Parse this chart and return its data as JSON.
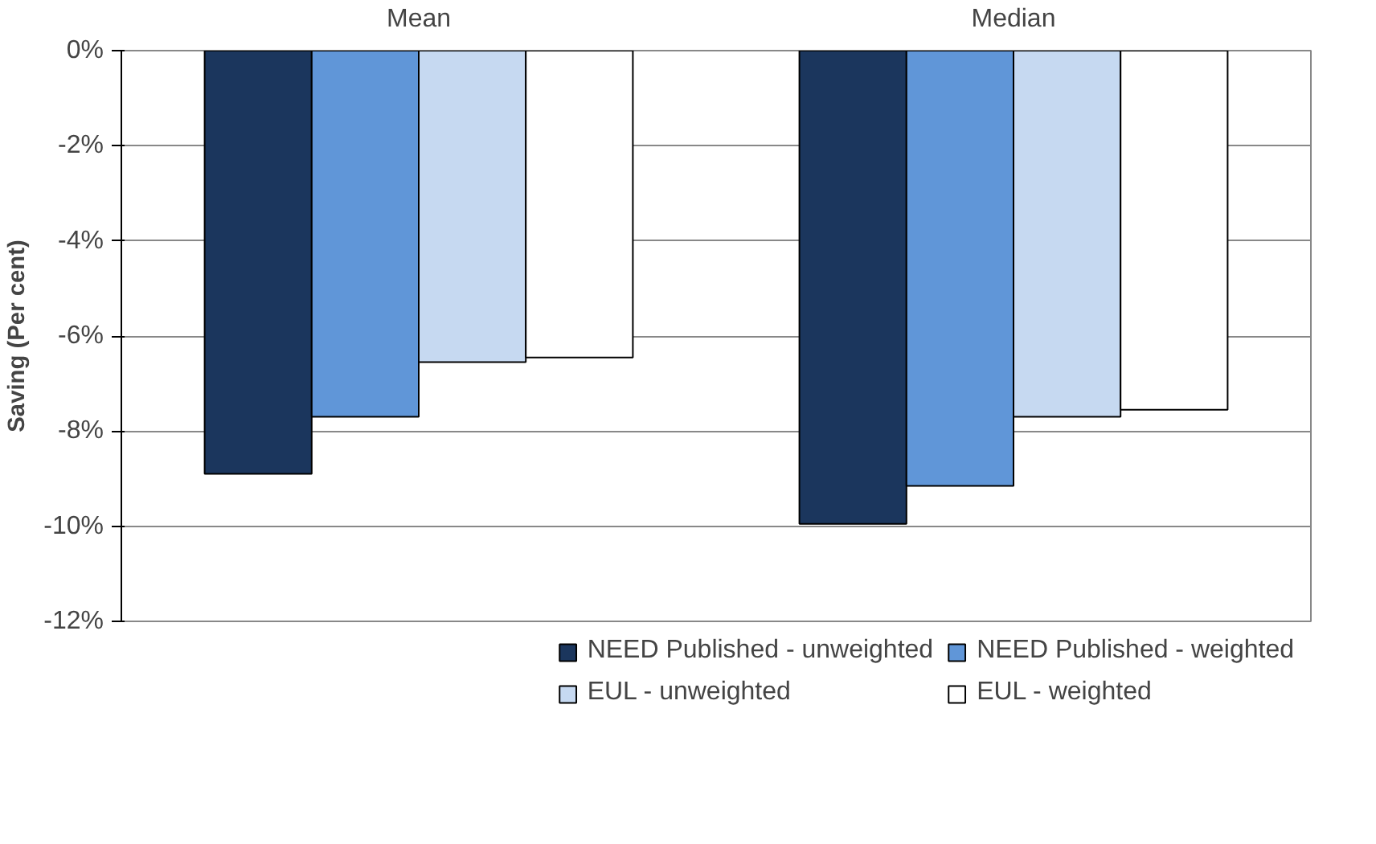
{
  "chart_data": {
    "type": "bar",
    "ylabel": "Saving (Per cent)",
    "categories": [
      "Mean",
      "Median"
    ],
    "series": [
      {
        "name": "NEED Published - unweighted",
        "color": "#1b365d",
        "values": [
          -8.9,
          -9.95
        ]
      },
      {
        "name": "NEED Published - weighted",
        "color": "#6096d8",
        "values": [
          -7.7,
          -9.15
        ]
      },
      {
        "name": "EUL - unweighted",
        "color": "#c6d9f1",
        "values": [
          -6.55,
          -7.7
        ]
      },
      {
        "name": "EUL - weighted",
        "color": "#ffffff",
        "values": [
          -6.45,
          -7.55
        ]
      }
    ],
    "ylim": [
      -12,
      0
    ],
    "yticks": [
      {
        "value": 0,
        "label": "0%"
      },
      {
        "value": -2,
        "label": "-2%"
      },
      {
        "value": -4,
        "label": "-4%"
      },
      {
        "value": -6,
        "label": "-6%"
      },
      {
        "value": -8,
        "label": "-8%"
      },
      {
        "value": -10,
        "label": "-10%"
      },
      {
        "value": -12,
        "label": "-12%"
      }
    ],
    "grid": "y",
    "legend": "bottom"
  }
}
